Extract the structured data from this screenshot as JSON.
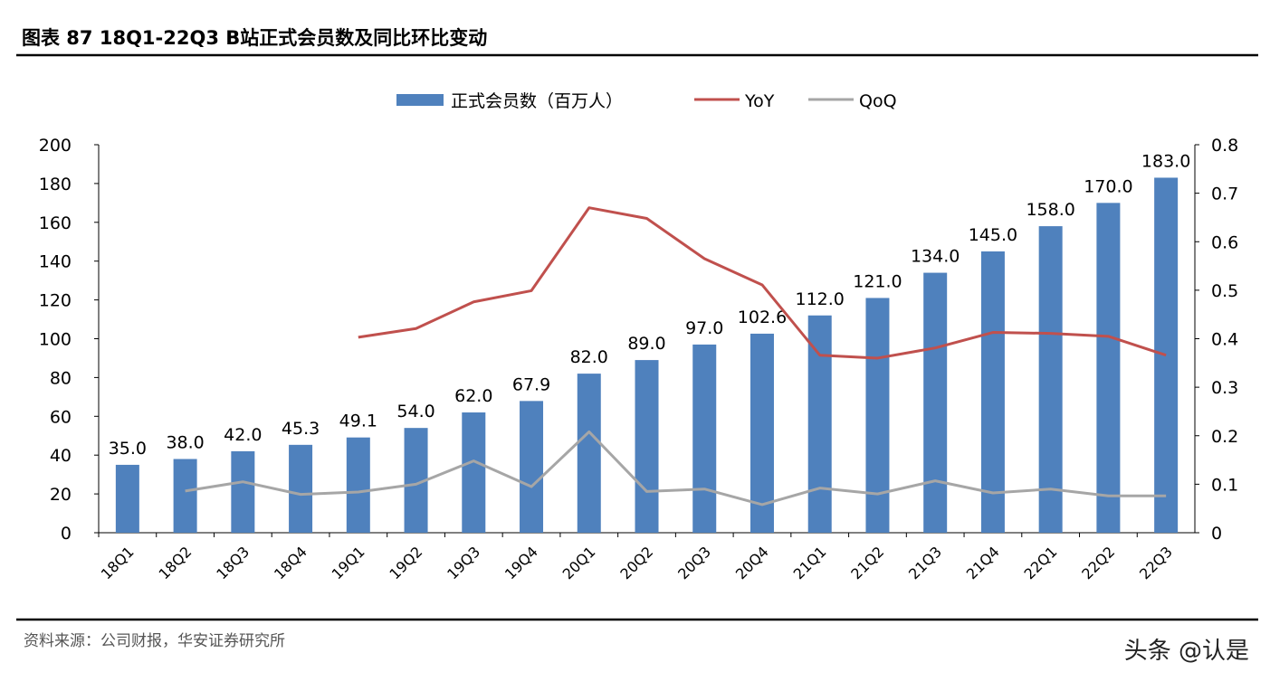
{
  "header": {
    "title": "图表 87 18Q1-22Q3 B站正式会员数及同比环比变动"
  },
  "footer": {
    "source": "资料来源：公司财报，华安证券研究所",
    "watermark": "头条 @认是"
  },
  "colors": {
    "bar": "#4F81BD",
    "yoy": "#C0504D",
    "qoq": "#A6A6A6"
  },
  "chart_data": {
    "type": "bar+line",
    "categories": [
      "18Q1",
      "18Q2",
      "18Q3",
      "18Q4",
      "19Q1",
      "19Q2",
      "19Q3",
      "19Q4",
      "20Q1",
      "20Q2",
      "20Q3",
      "20Q4",
      "21Q1",
      "21Q2",
      "21Q3",
      "21Q4",
      "22Q1",
      "22Q2",
      "22Q3"
    ],
    "series": [
      {
        "name": "正式会员数（百万人）",
        "type": "bar",
        "axis": "left",
        "values": [
          35.0,
          38.0,
          42.0,
          45.3,
          49.1,
          54.0,
          62.0,
          67.9,
          82.0,
          89.0,
          97.0,
          102.6,
          112.0,
          121.0,
          134.0,
          145.0,
          158.0,
          170.0,
          183.0
        ],
        "labels": [
          "35.0",
          "38.0",
          "42.0",
          "45.3",
          "49.1",
          "54.0",
          "62.0",
          "67.9",
          "82.0",
          "89.0",
          "97.0",
          "102.6",
          "112.0",
          "121.0",
          "134.0",
          "145.0",
          "158.0",
          "170.0",
          "183.0"
        ]
      },
      {
        "name": "YoY",
        "type": "line",
        "axis": "right",
        "values": [
          null,
          null,
          null,
          null,
          0.403,
          0.421,
          0.476,
          0.499,
          0.67,
          0.648,
          0.565,
          0.511,
          0.366,
          0.36,
          0.381,
          0.413,
          0.411,
          0.405,
          0.366
        ]
      },
      {
        "name": "QoQ",
        "type": "line",
        "axis": "right",
        "values": [
          null,
          0.086,
          0.105,
          0.079,
          0.084,
          0.1,
          0.148,
          0.095,
          0.208,
          0.085,
          0.09,
          0.058,
          0.092,
          0.08,
          0.107,
          0.082,
          0.09,
          0.076,
          0.076
        ]
      }
    ],
    "y_left": {
      "range": [
        0,
        200
      ],
      "ticks": [
        "0",
        "20",
        "40",
        "60",
        "80",
        "100",
        "120",
        "140",
        "160",
        "180",
        "200"
      ]
    },
    "y_right": {
      "range": [
        0,
        0.8
      ],
      "ticks": [
        "0",
        "0.1",
        "0.2",
        "0.3",
        "0.4",
        "0.5",
        "0.6",
        "0.7",
        "0.8"
      ]
    },
    "legend": "top",
    "grid": false
  }
}
